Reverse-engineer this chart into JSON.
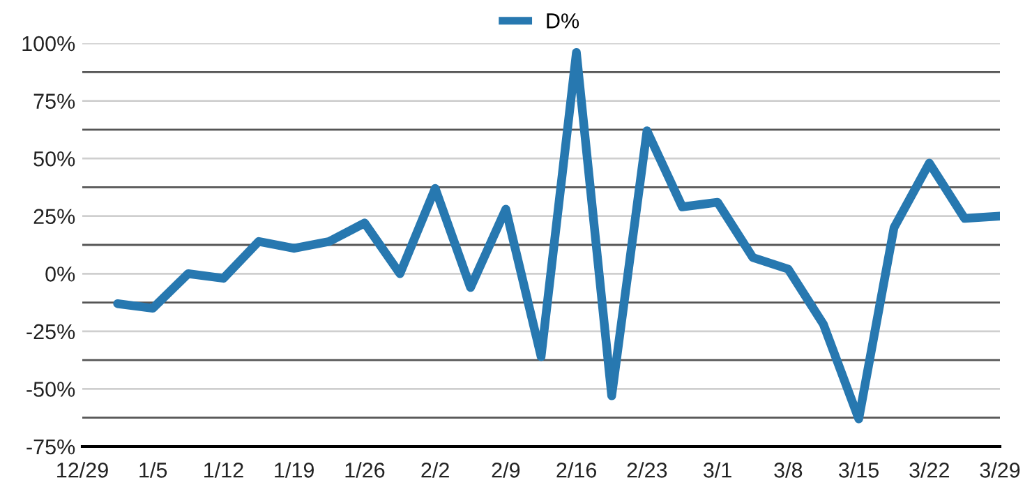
{
  "chart_data": {
    "type": "line",
    "categories": [
      "12/29",
      null,
      "1/5",
      null,
      "1/12",
      null,
      "1/19",
      null,
      "1/26",
      null,
      "2/2",
      null,
      "2/9",
      null,
      "2/16",
      null,
      "2/23",
      null,
      "3/1",
      null,
      "3/8",
      null,
      "3/15",
      null,
      "3/22",
      null,
      "3/29"
    ],
    "series": [
      {
        "name": "D%",
        "color": "#2778b0",
        "values": [
          null,
          -13,
          -15,
          0,
          -2,
          14,
          11,
          14,
          22,
          0,
          37,
          -6,
          28,
          -36,
          96,
          -53,
          62,
          29,
          31,
          7,
          2,
          -22,
          -63,
          20,
          48,
          24,
          25
        ]
      }
    ],
    "ylim": [
      -75,
      100
    ],
    "yticks": [
      {
        "value": -75,
        "label": "-75%"
      },
      {
        "value": -62.5,
        "label": null
      },
      {
        "value": -50,
        "label": "-50%"
      },
      {
        "value": -37.5,
        "label": null
      },
      {
        "value": -25,
        "label": "-25%"
      },
      {
        "value": -12.5,
        "label": null
      },
      {
        "value": 0,
        "label": "0%"
      },
      {
        "value": 12.5,
        "label": null
      },
      {
        "value": 25,
        "label": "25%"
      },
      {
        "value": 37.5,
        "label": null
      },
      {
        "value": 50,
        "label": "50%"
      },
      {
        "value": 62.5,
        "label": null
      },
      {
        "value": 75,
        "label": "75%"
      },
      {
        "value": 87.5,
        "label": null
      },
      {
        "value": 100,
        "label": "100%"
      }
    ],
    "grid": "y",
    "legend": "top",
    "marker": "none",
    "line_style": "solid"
  }
}
